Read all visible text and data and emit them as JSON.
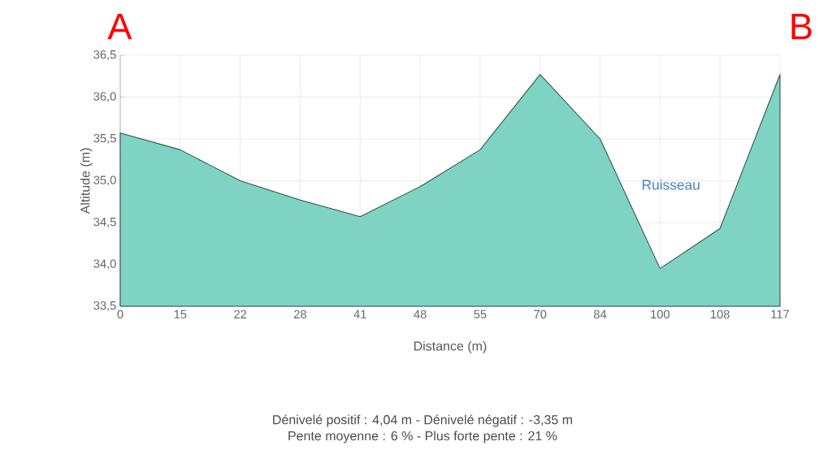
{
  "chart_data": {
    "type": "area",
    "xlabel": "Distance (m)",
    "ylabel": "Altitude (m)",
    "categories": [
      "0",
      "15",
      "22",
      "28",
      "41",
      "48",
      "55",
      "70",
      "84",
      "100",
      "108",
      "117"
    ],
    "series": [
      {
        "color": "#7fd3c3",
        "values": [
          35.57,
          35.37,
          35.0,
          34.77,
          34.57,
          34.93,
          35.37,
          36.27,
          35.5,
          33.95,
          34.43,
          36.27
        ]
      }
    ],
    "ylim": [
      33.5,
      36.5
    ],
    "yticks": [
      {
        "value": 33.5,
        "label": "33,5"
      },
      {
        "value": 34.0,
        "label": "34,0"
      },
      {
        "value": 34.5,
        "label": "34,5"
      },
      {
        "value": 35.0,
        "label": "35,0"
      },
      {
        "value": 35.5,
        "label": "35,5"
      },
      {
        "value": 36.0,
        "label": "36,0"
      },
      {
        "value": 36.5,
        "label": "36,5"
      }
    ],
    "grid": true,
    "annotations": [
      "A",
      "B",
      "Ruisseau",
      "Dénivelé positif : 4,04 m - Dénivelé négatif : -3,35 m",
      "Pente moyenne : 6 % - Plus forte pente : 21 %"
    ]
  }
}
